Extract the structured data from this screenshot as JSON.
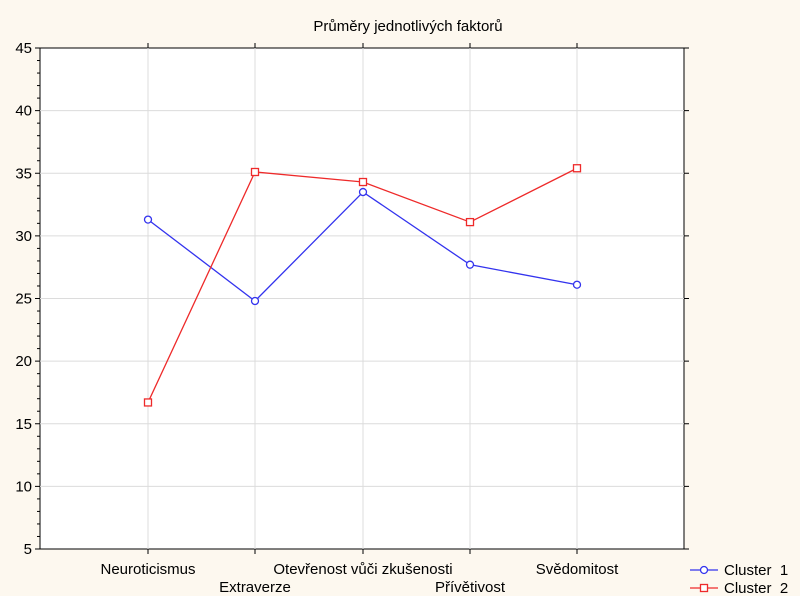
{
  "chart_data": {
    "type": "line",
    "title": "Průměry jednotlivých faktorů",
    "xlabel": "",
    "ylabel": "",
    "categories": [
      "Neuroticismus",
      "Extraverze",
      "Otevřenost vůči zkušenosti",
      "Přívětivost",
      "Svědomitost"
    ],
    "ylim": [
      5,
      45
    ],
    "yticks": [
      5,
      10,
      15,
      20,
      25,
      30,
      35,
      40,
      45
    ],
    "grid": true,
    "legend": "bottom-right",
    "series": [
      {
        "name": "Cluster  1",
        "values": [
          31.3,
          24.8,
          33.5,
          27.7,
          26.1
        ],
        "color": "#3333ee",
        "marker": "circle"
      },
      {
        "name": "Cluster  2",
        "values": [
          16.7,
          35.1,
          34.3,
          31.1,
          35.4
        ],
        "color": "#ee2a2a",
        "marker": "square"
      }
    ]
  }
}
